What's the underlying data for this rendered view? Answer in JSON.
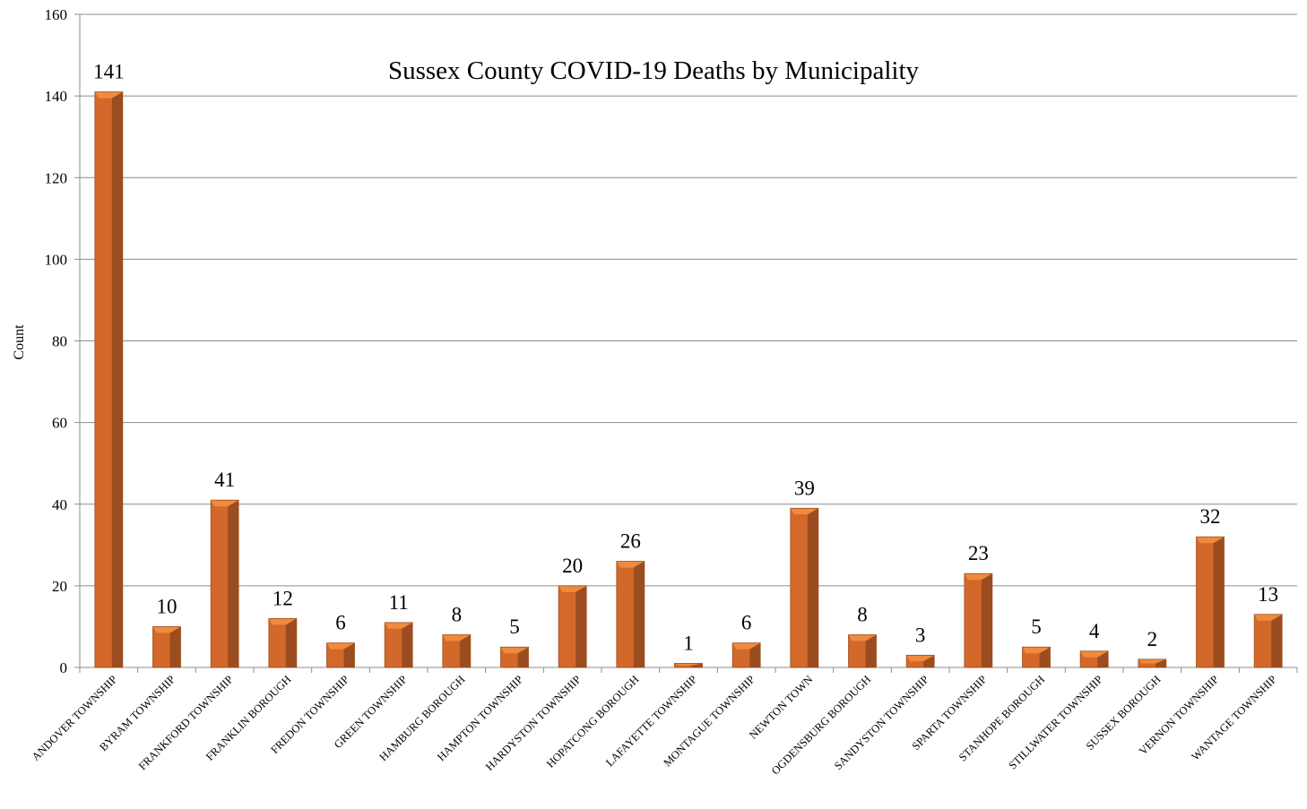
{
  "chart_data": {
    "type": "bar",
    "title": "Sussex County COVID-19 Deaths by Municipality",
    "xlabel": "",
    "ylabel": "Count",
    "ylim": [
      0,
      160
    ],
    "yticks": [
      0,
      20,
      40,
      60,
      80,
      100,
      120,
      140,
      160
    ],
    "grid": true,
    "categories": [
      "ANDOVER TOWNSHIP",
      "BYRAM TOWNSHIP",
      "FRANKFORD TOWNSHIP",
      "FRANKLIN BOROUGH",
      "FREDON TOWNSHIP",
      "GREEN TOWNSHIP",
      "HAMBURG BOROUGH",
      "HAMPTON TOWNSHIP",
      "HARDYSTON TOWNSHIP",
      "HOPATCONG BOROUGH",
      "LAFAYETTE TOWNSHIP",
      "MONTAGUE TOWNSHIP",
      "NEWTON TOWN",
      "OGDENSBURG BOROUGH",
      "SANDYSTON TOWNSHIP",
      "SPARTA TOWNSHIP",
      "STANHOPE BOROUGH",
      "STILLWATER TOWNSHIP",
      "SUSSEX BOROUGH",
      "VERNON TOWNSHIP",
      "WANTAGE TOWNSHIP"
    ],
    "values": [
      141,
      10,
      41,
      12,
      6,
      11,
      8,
      5,
      20,
      26,
      1,
      6,
      39,
      8,
      3,
      23,
      5,
      4,
      2,
      32,
      13
    ],
    "colors": {
      "bar_front": "#d2692a",
      "bar_side": "#9c4d1f",
      "bar_top": "#f08a3c",
      "grid": "#8c8c8c",
      "axis": "#8c8c8c"
    }
  }
}
